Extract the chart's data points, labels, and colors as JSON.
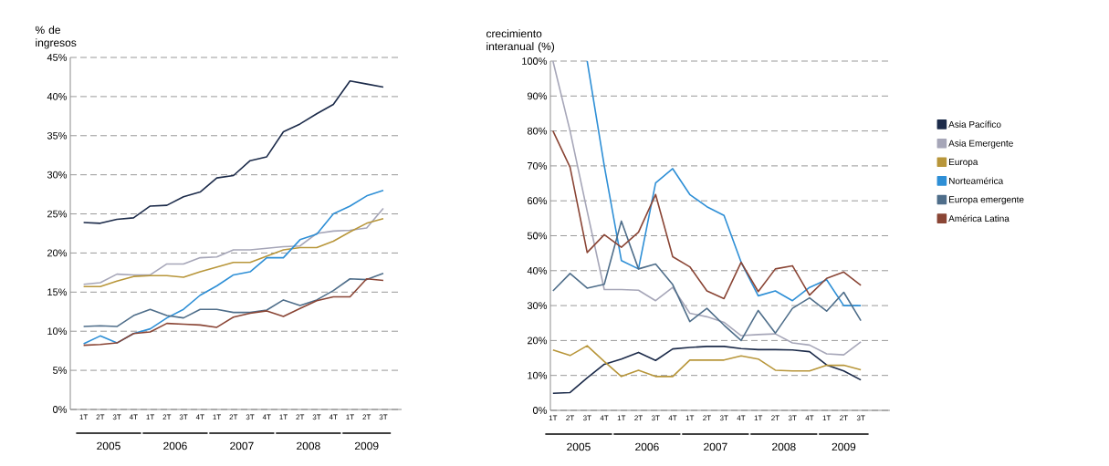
{
  "chart_data": [
    {
      "type": "line",
      "ylabel": "% de ingresos",
      "categories": [
        "1T",
        "2T",
        "3T",
        "4T",
        "1T",
        "2T",
        "3T",
        "4T",
        "1T",
        "2T",
        "3T",
        "4T",
        "1T",
        "2T",
        "3T",
        "4T",
        "1T",
        "2T",
        "3T"
      ],
      "annotations": [
        "2005",
        "2006",
        "2007",
        "2008",
        "2009"
      ],
      "ylim": [
        0,
        45
      ],
      "yticks": [
        {
          "value": 0,
          "label": "0%"
        },
        {
          "value": 5,
          "label": "5%"
        },
        {
          "value": 10,
          "label": "10%"
        },
        {
          "value": 15,
          "label": "15%"
        },
        {
          "value": 20,
          "label": "20%"
        },
        {
          "value": 25,
          "label": "25%"
        },
        {
          "value": 30,
          "label": "30%"
        },
        {
          "value": 35,
          "label": "35%"
        },
        {
          "value": 40,
          "label": "40%"
        },
        {
          "value": 45,
          "label": "45%"
        }
      ],
      "grid": "y",
      "series": [
        {
          "color": "#1c2b4a",
          "values": [
            23.9,
            23.8,
            24.3,
            24.5,
            26.0,
            26.1,
            27.2,
            27.8,
            29.6,
            29.9,
            31.8,
            32.3,
            35.5,
            36.5,
            37.8,
            39.0,
            42.0,
            41.6,
            41.2
          ]
        },
        {
          "color": "#a6a6b8",
          "values": [
            16.0,
            16.2,
            17.3,
            17.2,
            17.2,
            18.6,
            18.6,
            19.4,
            19.5,
            20.4,
            20.4,
            20.6,
            20.8,
            20.9,
            22.5,
            22.8,
            22.9,
            23.2,
            25.7
          ]
        },
        {
          "color": "#b8963a",
          "values": [
            15.7,
            15.7,
            16.4,
            17.0,
            17.1,
            17.1,
            16.9,
            17.6,
            18.2,
            18.8,
            18.8,
            19.6,
            20.4,
            20.7,
            20.7,
            21.5,
            22.7,
            23.8,
            24.4
          ]
        },
        {
          "color": "#2e8fd6",
          "values": [
            8.4,
            9.4,
            8.5,
            9.7,
            10.3,
            11.7,
            12.8,
            14.6,
            15.8,
            17.2,
            17.6,
            19.4,
            19.4,
            21.7,
            22.4,
            25.0,
            26.0,
            27.3,
            28.0
          ]
        },
        {
          "color": "#4f6e8a",
          "values": [
            10.6,
            10.7,
            10.6,
            12.0,
            12.8,
            12.0,
            11.7,
            12.8,
            12.8,
            12.4,
            12.4,
            12.7,
            14.0,
            13.3,
            14.0,
            15.2,
            16.7,
            16.6,
            17.4
          ]
        },
        {
          "color": "#8a4535",
          "values": [
            8.2,
            8.3,
            8.5,
            9.7,
            9.9,
            11.0,
            10.9,
            10.8,
            10.5,
            11.8,
            12.3,
            12.6,
            11.9,
            12.9,
            13.9,
            14.4,
            14.4,
            16.7,
            16.5
          ]
        }
      ]
    },
    {
      "type": "line",
      "ylabel": "crecimiento interanual (%)",
      "categories": [
        "1T",
        "2T",
        "3T",
        "4T",
        "1T",
        "2T",
        "3T",
        "4T",
        "1T",
        "2T",
        "3T",
        "4T",
        "1T",
        "2T",
        "3T",
        "4T",
        "1T",
        "2T",
        "3T"
      ],
      "annotations": [
        "2005",
        "2006",
        "2007",
        "2008",
        "2009"
      ],
      "ylim": [
        0,
        100
      ],
      "yticks": [
        {
          "value": 0,
          "label": "0%"
        },
        {
          "value": 10,
          "label": "10%"
        },
        {
          "value": 20,
          "label": "20%"
        },
        {
          "value": 30,
          "label": "30%"
        },
        {
          "value": 40,
          "label": "40%"
        },
        {
          "value": 50,
          "label": "50%"
        },
        {
          "value": 60,
          "label": "60%"
        },
        {
          "value": 70,
          "label": "70%"
        },
        {
          "value": 80,
          "label": "80%"
        },
        {
          "value": 90,
          "label": "90%"
        },
        {
          "value": 100,
          "label": "100%"
        }
      ],
      "grid": "y",
      "legend": "right",
      "series": [
        {
          "name": "Asia Pacífico",
          "color": "#1c2b4a",
          "values": [
            4.9,
            5.1,
            9.3,
            13.2,
            14.7,
            16.6,
            14.3,
            17.6,
            18.0,
            18.3,
            18.3,
            17.7,
            17.4,
            17.4,
            17.3,
            16.8,
            13.0,
            11.3,
            8.7
          ]
        },
        {
          "name": "Asia Emergente",
          "color": "#a6a6b8",
          "values": [
            100,
            80,
            57,
            34.6,
            34.6,
            34.4,
            31.4,
            35.2,
            27.8,
            26.8,
            25.2,
            21.4,
            21.7,
            21.9,
            19.3,
            18.7,
            16.2,
            15.9,
            19.6
          ]
        },
        {
          "name": "Europa",
          "color": "#b8963a",
          "values": [
            17.3,
            15.7,
            18.5,
            14.0,
            9.7,
            11.5,
            9.7,
            9.7,
            14.4,
            14.4,
            14.4,
            15.6,
            14.7,
            11.5,
            11.3,
            11.3,
            12.9,
            12.9,
            11.6
          ]
        },
        {
          "name": "Norteamérica",
          "color": "#2e8fd6",
          "values": [
            null,
            null,
            100,
            70,
            42.9,
            40.5,
            65.1,
            69.2,
            61.8,
            58.3,
            55.8,
            42.4,
            32.8,
            34.2,
            31.4,
            35.2,
            37.4,
            30.0,
            30.0
          ]
        },
        {
          "name": "Europa emergente",
          "color": "#4f6e8a",
          "values": [
            34.2,
            39.2,
            35.0,
            36.1,
            54.2,
            40.5,
            41.9,
            36.0,
            25.4,
            29.2,
            24.4,
            20.0,
            28.6,
            22.1,
            29.2,
            32.2,
            28.4,
            33.8,
            25.7
          ]
        },
        {
          "name": "América Latina",
          "color": "#8a4535",
          "values": [
            80,
            69.6,
            45.2,
            50.3,
            46.7,
            51.0,
            61.8,
            44.0,
            41.1,
            34.2,
            32.0,
            42.4,
            34.0,
            40.5,
            41.4,
            33.0,
            37.8,
            39.6,
            35.8
          ]
        }
      ]
    }
  ]
}
